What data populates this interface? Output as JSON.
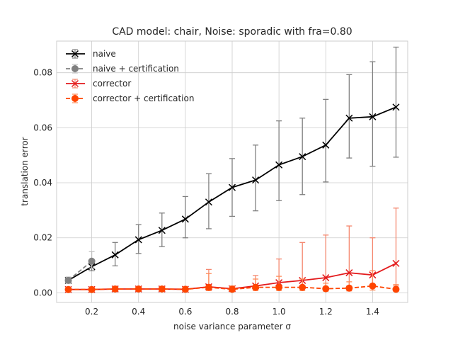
{
  "chart_data": {
    "type": "line",
    "title": "CAD model: chair, Noise: sporadic with fra=0.80",
    "xlabel": "noise variance parameter σ",
    "ylabel": "translation error",
    "xlim": [
      0.05,
      1.55
    ],
    "ylim": [
      -0.0035,
      0.0915
    ],
    "xticks": [
      0.2,
      0.4,
      0.6,
      0.8,
      1.0,
      1.2,
      1.4
    ],
    "xtick_labels": [
      "0.2",
      "0.4",
      "0.6",
      "0.8",
      "1.0",
      "1.2",
      "1.4"
    ],
    "yticks": [
      0.0,
      0.02,
      0.04,
      0.06,
      0.08
    ],
    "ytick_labels": [
      "0.00",
      "0.02",
      "0.04",
      "0.06",
      "0.08"
    ],
    "grid": true,
    "legend_position": "top-left",
    "series": [
      {
        "name": "naive",
        "color": "#000000",
        "errcolor": "#808080",
        "marker": "x",
        "dashed": false,
        "x": [
          0.1,
          0.2,
          0.3,
          0.4,
          0.5,
          0.6,
          0.7,
          0.8,
          0.9,
          1.0,
          1.1,
          1.2,
          1.3,
          1.4,
          1.5
        ],
        "y": [
          0.0045,
          0.0095,
          0.0138,
          0.0193,
          0.0227,
          0.0268,
          0.033,
          0.0383,
          0.041,
          0.0465,
          0.0495,
          0.0537,
          0.0635,
          0.064,
          0.0675
        ],
        "err_low": [
          0.0035,
          0.008,
          0.0098,
          0.0143,
          0.0168,
          0.02,
          0.0233,
          0.0278,
          0.0298,
          0.0335,
          0.0357,
          0.0403,
          0.049,
          0.046,
          0.0493
        ],
        "err_high": [
          0.0057,
          0.012,
          0.0183,
          0.0248,
          0.029,
          0.035,
          0.0433,
          0.0488,
          0.0537,
          0.0625,
          0.0635,
          0.0703,
          0.0793,
          0.084,
          0.0893
        ]
      },
      {
        "name": "naive + certification",
        "color": "#808080",
        "errcolor": "#c0c0c0",
        "marker": "o",
        "dashed": true,
        "x": [
          0.1,
          0.2
        ],
        "y": [
          0.0045,
          0.0115
        ],
        "err_low": [
          0.0035,
          0.009
        ],
        "err_high": [
          0.0057,
          0.015
        ]
      },
      {
        "name": "corrector",
        "color": "#e31a1c",
        "errcolor": "#f5876e",
        "marker": "x",
        "dashed": false,
        "x": [
          0.1,
          0.2,
          0.3,
          0.4,
          0.5,
          0.6,
          0.7,
          0.8,
          0.9,
          1.0,
          1.1,
          1.2,
          1.3,
          1.4,
          1.5
        ],
        "y": [
          0.0012,
          0.0012,
          0.0014,
          0.0014,
          0.0014,
          0.0013,
          0.0022,
          0.0015,
          0.0025,
          0.0037,
          0.0045,
          0.0055,
          0.0073,
          0.0065,
          0.0107
        ],
        "err_low": [
          0.0004,
          0.0004,
          0.0006,
          0.0006,
          0.0006,
          0.0005,
          0.001,
          0.0006,
          0.0012,
          0.0015,
          0.0018,
          0.002,
          0.0025,
          0.002,
          0.0025
        ],
        "err_high": [
          0.002,
          0.002,
          0.0022,
          0.0022,
          0.0022,
          0.0021,
          0.0085,
          0.0025,
          0.0063,
          0.0123,
          0.0183,
          0.021,
          0.0243,
          0.02,
          0.0308
        ]
      },
      {
        "name": "corrector + certification",
        "color": "#ff4500",
        "errcolor": "#ff8c5a",
        "marker": "o",
        "dashed": true,
        "x": [
          0.1,
          0.2,
          0.3,
          0.4,
          0.5,
          0.6,
          0.7,
          0.8,
          0.9,
          1.0,
          1.1,
          1.2,
          1.3,
          1.4,
          1.5
        ],
        "y": [
          0.0012,
          0.0012,
          0.0014,
          0.0014,
          0.0014,
          0.0013,
          0.002,
          0.0013,
          0.002,
          0.002,
          0.002,
          0.0015,
          0.0017,
          0.0025,
          0.0013
        ],
        "err_low": [
          0.0004,
          0.0004,
          0.0006,
          0.0006,
          0.0006,
          0.0005,
          0.0008,
          0.0005,
          0.0008,
          0.0008,
          0.0008,
          0.0006,
          0.0007,
          0.001,
          0.0005
        ],
        "err_high": [
          0.002,
          0.002,
          0.0022,
          0.0022,
          0.0022,
          0.0021,
          0.007,
          0.0025,
          0.005,
          0.006,
          0.005,
          0.0035,
          0.004,
          0.008,
          0.003
        ]
      }
    ]
  }
}
